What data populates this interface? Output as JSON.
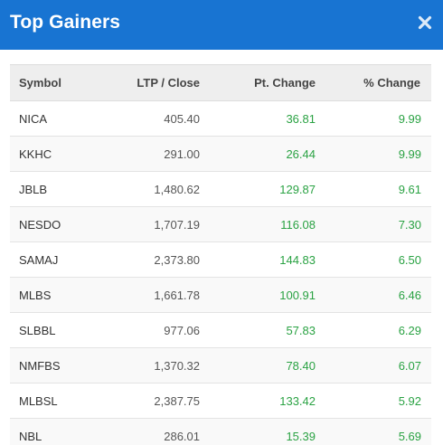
{
  "modal": {
    "title": "Top Gainers",
    "close_icon": "close-icon"
  },
  "colors": {
    "header_bg": "#1874d2",
    "positive": "#2aa243"
  },
  "table": {
    "columns": [
      "Symbol",
      "LTP / Close",
      "Pt. Change",
      "% Change"
    ],
    "rows": [
      {
        "symbol": "NICA",
        "ltp": "405.40",
        "pt_change": "36.81",
        "pct_change": "9.99"
      },
      {
        "symbol": "KKHC",
        "ltp": "291.00",
        "pt_change": "26.44",
        "pct_change": "9.99"
      },
      {
        "symbol": "JBLB",
        "ltp": "1,480.62",
        "pt_change": "129.87",
        "pct_change": "9.61"
      },
      {
        "symbol": "NESDO",
        "ltp": "1,707.19",
        "pt_change": "116.08",
        "pct_change": "7.30"
      },
      {
        "symbol": "SAMAJ",
        "ltp": "2,373.80",
        "pt_change": "144.83",
        "pct_change": "6.50"
      },
      {
        "symbol": "MLBS",
        "ltp": "1,661.78",
        "pt_change": "100.91",
        "pct_change": "6.46"
      },
      {
        "symbol": "SLBBL",
        "ltp": "977.06",
        "pt_change": "57.83",
        "pct_change": "6.29"
      },
      {
        "symbol": "NMFBS",
        "ltp": "1,370.32",
        "pt_change": "78.40",
        "pct_change": "6.07"
      },
      {
        "symbol": "MLBSL",
        "ltp": "2,387.75",
        "pt_change": "133.42",
        "pct_change": "5.92"
      },
      {
        "symbol": "NBL",
        "ltp": "286.01",
        "pt_change": "15.39",
        "pct_change": "5.69"
      }
    ]
  }
}
